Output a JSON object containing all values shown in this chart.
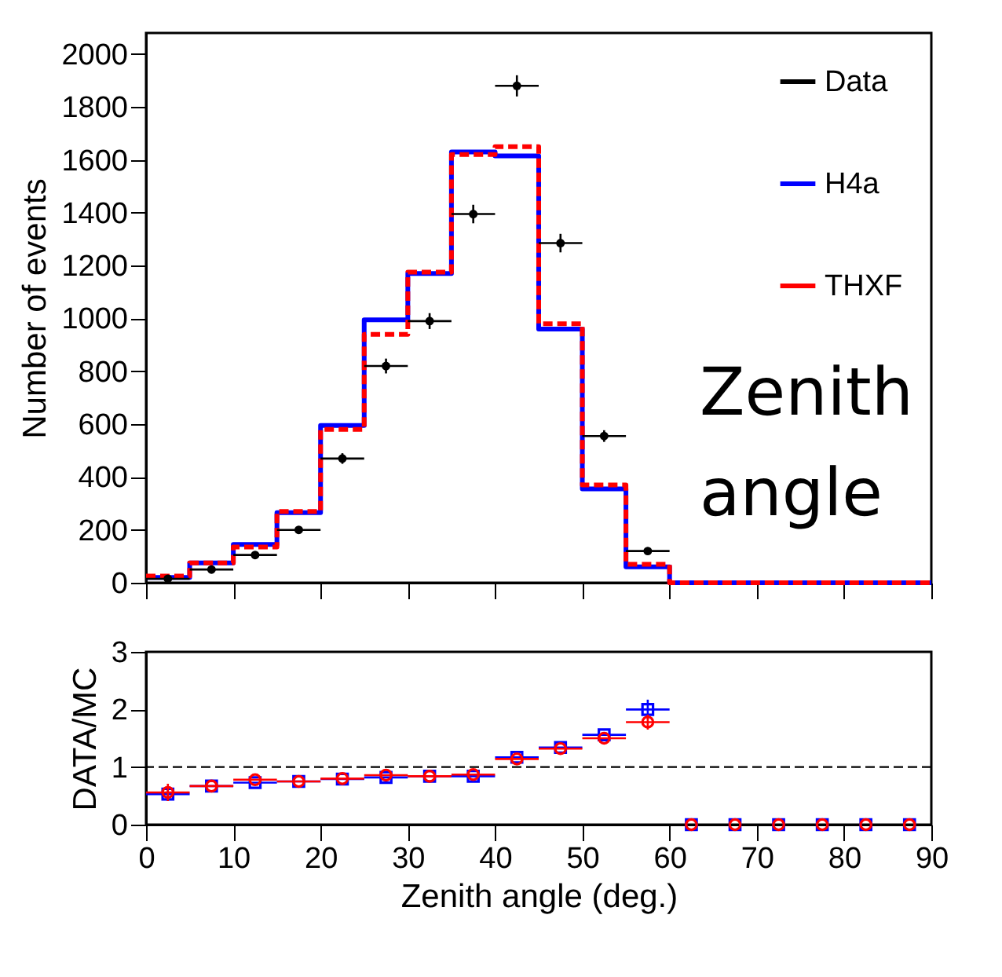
{
  "chart_data": [
    {
      "type": "step",
      "ylabel": "Number of events",
      "xlim": [
        0,
        90
      ],
      "xticks": [
        0,
        10,
        20,
        30,
        40,
        50,
        60,
        70,
        80,
        90
      ],
      "ylim": [
        0,
        2080
      ],
      "yticks": [
        0,
        200,
        400,
        600,
        800,
        1000,
        1200,
        1400,
        1600,
        1800,
        2000
      ],
      "tick_labels": "y",
      "legend": "top right",
      "annotations": [
        "Zenith angle"
      ],
      "series": [
        {
          "name": "Data",
          "type": "scatter",
          "marker": "circle",
          "color": "#000000",
          "x": [
            2.5,
            7.5,
            12.5,
            17.5,
            22.5,
            27.5,
            32.5,
            37.5,
            42.5,
            47.5,
            52.5,
            57.5
          ],
          "values": [
            15,
            50,
            105,
            200,
            470,
            820,
            990,
            1395,
            1880,
            1285,
            555,
            120
          ],
          "errors": [
            4,
            7,
            10,
            14,
            20,
            28,
            30,
            35,
            40,
            35,
            22,
            10
          ],
          "xerrors": [
            2.5,
            2.5,
            2.5,
            2.5,
            2.5,
            2.5,
            2.5,
            2.5,
            2.5,
            2.5,
            2.5,
            2.5
          ]
        },
        {
          "name": "H4a",
          "type": "histogram",
          "line_style": "solid",
          "color": "#0000ff",
          "bins": [
            0,
            5,
            10,
            15,
            20,
            25,
            30,
            35,
            40,
            45,
            50,
            55,
            60,
            65,
            70,
            75,
            80,
            85,
            90
          ],
          "values": [
            20,
            75,
            145,
            265,
            595,
            995,
            1170,
            1630,
            1615,
            960,
            355,
            60,
            0,
            0,
            0,
            0,
            0,
            0
          ]
        },
        {
          "name": "THXF",
          "type": "histogram",
          "line_style": "dashed",
          "color": "#ff0000",
          "bins": [
            0,
            5,
            10,
            15,
            20,
            25,
            30,
            35,
            40,
            45,
            50,
            55,
            60,
            65,
            70,
            75,
            80,
            85,
            90
          ],
          "values": [
            25,
            75,
            135,
            270,
            580,
            940,
            1175,
            1620,
            1650,
            980,
            370,
            70,
            0,
            0,
            0,
            0,
            0,
            0
          ]
        }
      ]
    },
    {
      "type": "scatter",
      "xlabel": "Zenith angle (deg.)",
      "ylabel": "DATA/MC",
      "xlim": [
        0,
        90
      ],
      "xticks": [
        0,
        10,
        20,
        30,
        40,
        50,
        60,
        70,
        80,
        90
      ],
      "ylim": [
        0,
        3
      ],
      "yticks": [
        0,
        1,
        2,
        3
      ],
      "ref_lines": [
        {
          "axis": "y",
          "value": 1,
          "color": "#000000",
          "line_style": "dashed"
        }
      ],
      "series": [
        {
          "marker": "square",
          "color": "#0000ff",
          "x": [
            2.5,
            7.5,
            12.5,
            17.5,
            22.5,
            27.5,
            32.5,
            37.5,
            42.5,
            47.5,
            52.5,
            57.5,
            62.5,
            67.5,
            72.5,
            77.5,
            82.5,
            87.5
          ],
          "values": [
            0.53,
            0.67,
            0.73,
            0.75,
            0.79,
            0.82,
            0.84,
            0.84,
            1.17,
            1.34,
            1.56,
            2.0,
            0,
            0,
            0,
            0,
            0,
            0
          ],
          "errors": [
            0.12,
            null,
            null,
            null,
            null,
            null,
            null,
            null,
            null,
            null,
            null,
            0.17,
            null,
            null,
            null,
            null,
            null,
            null
          ],
          "xerrors": [
            2.5,
            2.5,
            2.5,
            2.5,
            2.5,
            2.5,
            2.5,
            2.5,
            2.5,
            2.5,
            2.5,
            2.5,
            null,
            null,
            null,
            null,
            null,
            null
          ]
        },
        {
          "marker": "circle",
          "color": "#ff0000",
          "x": [
            2.5,
            7.5,
            12.5,
            17.5,
            22.5,
            27.5,
            32.5,
            37.5,
            42.5,
            47.5,
            52.5,
            57.5,
            62.5,
            67.5,
            72.5,
            77.5,
            82.5,
            87.5
          ],
          "values": [
            0.56,
            0.67,
            0.78,
            0.75,
            0.8,
            0.86,
            0.84,
            0.87,
            1.14,
            1.32,
            1.5,
            1.78,
            0,
            0,
            0,
            0,
            0,
            0
          ],
          "errors": [
            0.15,
            null,
            null,
            null,
            null,
            null,
            null,
            null,
            null,
            null,
            null,
            0.13,
            null,
            null,
            null,
            null,
            null,
            null
          ],
          "xerrors": [
            2.5,
            2.5,
            2.5,
            2.5,
            2.5,
            2.5,
            2.5,
            2.5,
            2.5,
            2.5,
            2.5,
            2.5,
            null,
            null,
            null,
            null,
            null,
            null
          ]
        }
      ]
    }
  ]
}
